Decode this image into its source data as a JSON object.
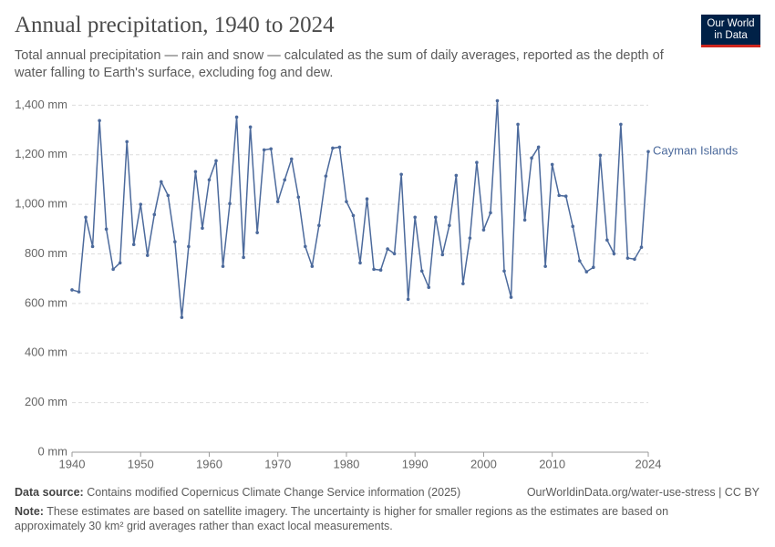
{
  "chart_data": {
    "type": "line",
    "title": "Annual precipitation, 1940 to 2024",
    "subtitle": "Total annual precipitation — rain and snow — calculated as the sum of daily averages, reported as the depth of water falling to Earth's surface, excluding fog and dew.",
    "logo": [
      "Our World",
      "in Data"
    ],
    "source_label": "Data source:",
    "source": "Contains modified Copernicus Climate Change Service information (2025)",
    "url": "OurWorldinData.org/water-use-stress | CC BY",
    "note_label": "Note:",
    "note": "These estimates are based on satellite imagery. The uncertainty is higher for smaller regions as the estimates are based on approximately 30 km² grid averages rather than exact local measurements.",
    "x": [
      1940,
      1941,
      1942,
      1943,
      1944,
      1945,
      1946,
      1947,
      1948,
      1949,
      1950,
      1951,
      1952,
      1953,
      1954,
      1955,
      1956,
      1957,
      1958,
      1959,
      1960,
      1961,
      1962,
      1963,
      1964,
      1965,
      1966,
      1967,
      1968,
      1969,
      1970,
      1971,
      1972,
      1973,
      1974,
      1975,
      1976,
      1977,
      1978,
      1979,
      1980,
      1981,
      1982,
      1983,
      1984,
      1985,
      1986,
      1987,
      1988,
      1989,
      1990,
      1991,
      1992,
      1993,
      1994,
      1995,
      1996,
      1997,
      1998,
      1999,
      2000,
      2001,
      2002,
      2003,
      2004,
      2005,
      2006,
      2007,
      2008,
      2009,
      2010,
      2011,
      2012,
      2013,
      2014,
      2015,
      2016,
      2017,
      2018,
      2019,
      2020,
      2021,
      2022,
      2023,
      2024
    ],
    "series": [
      {
        "name": "Cayman Islands",
        "color": "#4c6a9c",
        "values": [
          655,
          647,
          948,
          830,
          1338,
          900,
          738,
          764,
          1253,
          838,
          1000,
          794,
          959,
          1091,
          1036,
          849,
          544,
          830,
          1132,
          904,
          1099,
          1176,
          750,
          1003,
          1352,
          786,
          1312,
          886,
          1220,
          1224,
          1011,
          1099,
          1183,
          1029,
          830,
          750,
          915,
          1114,
          1227,
          1231,
          1011,
          955,
          764,
          1022,
          738,
          735,
          820,
          801,
          1121,
          617,
          948,
          731,
          665,
          948,
          797,
          915,
          1117,
          680,
          864,
          1169,
          897,
          966,
          1418,
          731,
          625,
          1323,
          937,
          1187,
          1231,
          750,
          1161,
          1036,
          1033,
          911,
          772,
          728,
          746,
          1198,
          856,
          801,
          1323,
          783,
          779,
          827,
          1213
        ]
      }
    ],
    "xlim": [
      1940,
      2024
    ],
    "xticks": [
      1940,
      1950,
      1960,
      1970,
      1980,
      1990,
      2000,
      2010,
      2024
    ],
    "ylim": [
      0,
      1420
    ],
    "yticks": [
      {
        "value": 0,
        "label": "0 mm"
      },
      {
        "value": 200,
        "label": "200 mm"
      },
      {
        "value": 400,
        "label": "400 mm"
      },
      {
        "value": 600,
        "label": "600 mm"
      },
      {
        "value": 800,
        "label": "800 mm"
      },
      {
        "value": 1000,
        "label": "1,000 mm"
      },
      {
        "value": 1200,
        "label": "1,200 mm"
      },
      {
        "value": 1400,
        "label": "1,400 mm"
      }
    ],
    "grid": true
  }
}
